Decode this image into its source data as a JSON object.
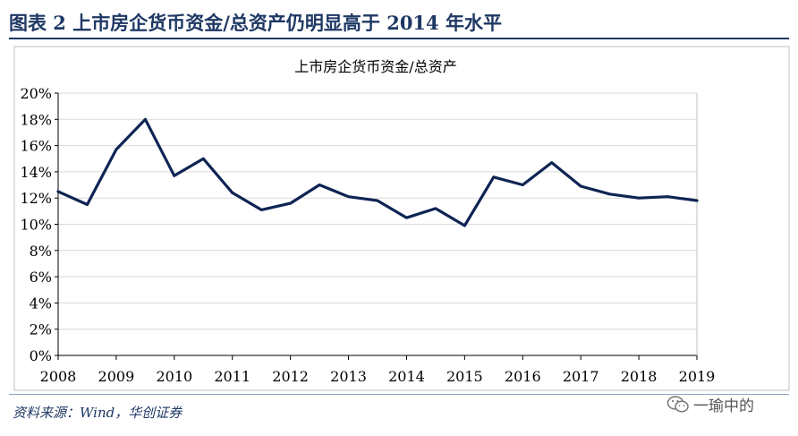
{
  "figure_title": "图表  2    上市房企货币资金/总资产仍明显高于 2014 年水平",
  "source": "资料来源：Wind，华创证券",
  "watermark": "一瑜中的",
  "colors": {
    "title": "#1f3864",
    "line": "#0e2453",
    "grid": "#d9d9d9"
  },
  "chart_data": {
    "type": "line",
    "title": "上市房企货币资金/总资产",
    "xlabel": "",
    "ylabel": "",
    "x_ticks": [
      "2008",
      "2009",
      "2010",
      "2011",
      "2012",
      "2013",
      "2014",
      "2015",
      "2016",
      "2017",
      "2018",
      "2019"
    ],
    "y_ticks": [
      "0%",
      "2%",
      "4%",
      "6%",
      "8%",
      "10%",
      "12%",
      "14%",
      "16%",
      "18%",
      "20%"
    ],
    "ylim": [
      0,
      20
    ],
    "xlim": [
      2008.0,
      2019.0
    ],
    "grid": "horizontal",
    "series": [
      {
        "x": [
          2008.0,
          2008.5,
          2009.0,
          2009.5,
          2010.0,
          2010.5,
          2011.0,
          2011.5,
          2012.0,
          2012.5,
          2013.0,
          2013.5,
          2014.0,
          2014.5,
          2015.0,
          2015.5,
          2016.0,
          2016.5,
          2017.0,
          2017.5,
          2018.0,
          2018.5,
          2019.0
        ],
        "values": [
          12.5,
          11.5,
          15.7,
          18.0,
          13.7,
          15.0,
          12.4,
          11.1,
          11.6,
          13.0,
          12.1,
          11.8,
          10.5,
          11.2,
          9.9,
          13.6,
          13.0,
          14.7,
          12.9,
          12.3,
          12.0,
          12.1,
          11.8
        ]
      }
    ]
  }
}
